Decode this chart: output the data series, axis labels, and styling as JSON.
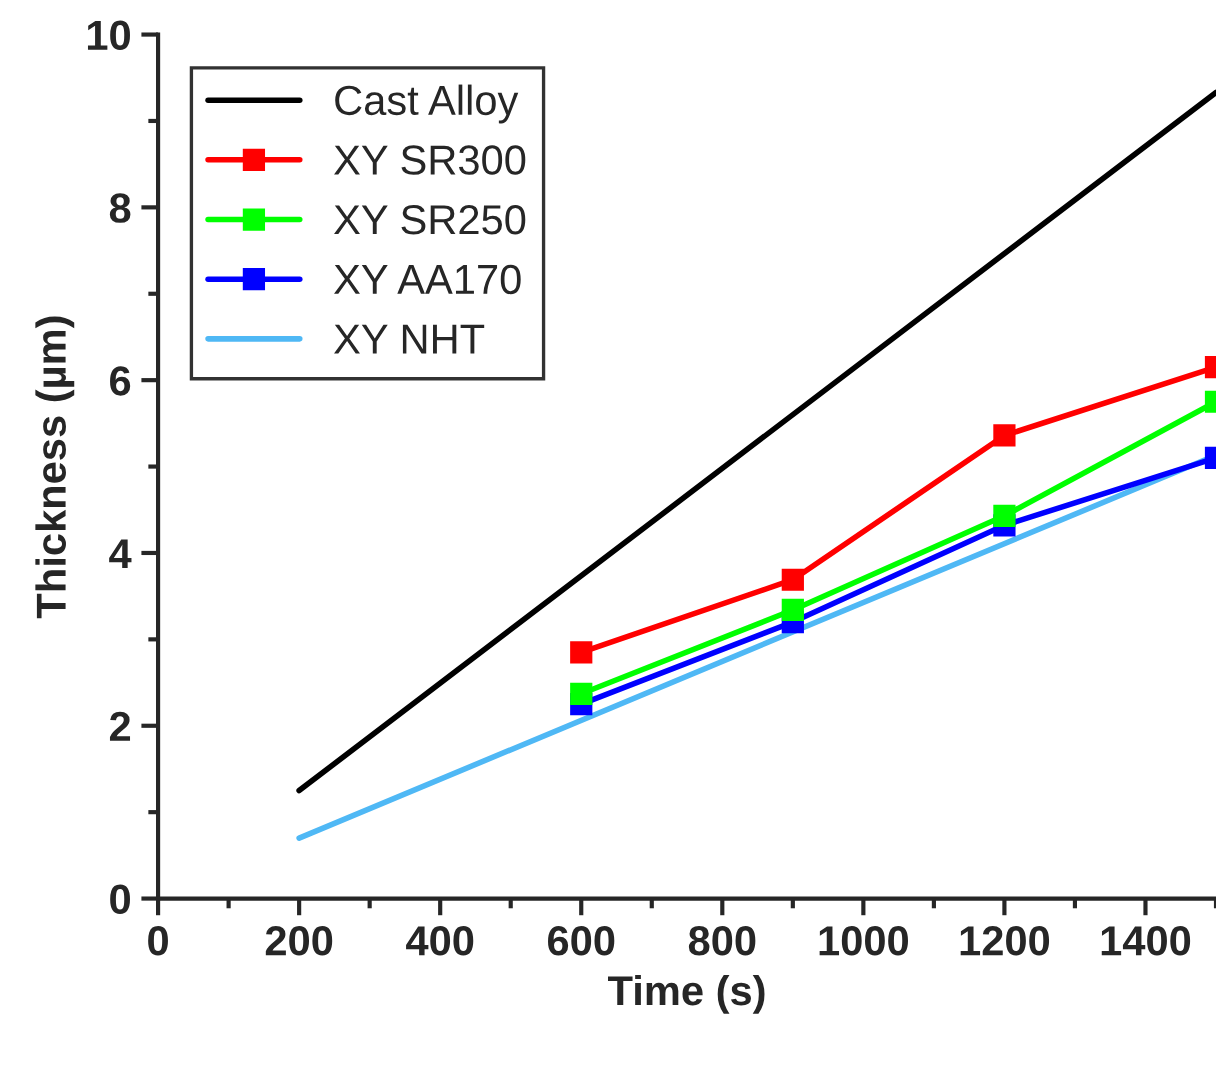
{
  "chart_data": {
    "type": "line",
    "xlabel": "Time (s)",
    "ylabel": "Thickness (µm)",
    "xlim": [
      0,
      1500
    ],
    "xticks": [
      0,
      200,
      400,
      600,
      800,
      1000,
      1200,
      1400
    ],
    "ylim": [
      0,
      10
    ],
    "yticks": [
      0,
      2,
      4,
      6,
      8,
      10
    ],
    "grid": false,
    "legend": "top left",
    "line_style": "solid",
    "series": [
      {
        "name": "Cast Alloy",
        "color": "#000000",
        "marker": "none",
        "x": [
          200,
          1500
        ],
        "values": [
          1.25,
          9.33
        ]
      },
      {
        "name": "XY SR300",
        "color": "#ff0000",
        "marker": "square",
        "x": [
          600,
          900,
          1200,
          1500
        ],
        "values": [
          2.85,
          3.69,
          5.36,
          6.15
        ]
      },
      {
        "name": "XY SR250",
        "color": "#00ff00",
        "marker": "square",
        "x": [
          600,
          900,
          1200,
          1500
        ],
        "values": [
          2.37,
          3.34,
          4.43,
          5.75
        ]
      },
      {
        "name": "XY AA170",
        "color": "#0000ff",
        "marker": "square",
        "x": [
          600,
          900,
          1200,
          1500
        ],
        "values": [
          2.25,
          3.2,
          4.32,
          5.1
        ]
      },
      {
        "name": "XY NHT",
        "color": "#4fb8f5",
        "marker": "none",
        "x": [
          200,
          1500
        ],
        "values": [
          0.7,
          5.13
        ]
      }
    ]
  }
}
